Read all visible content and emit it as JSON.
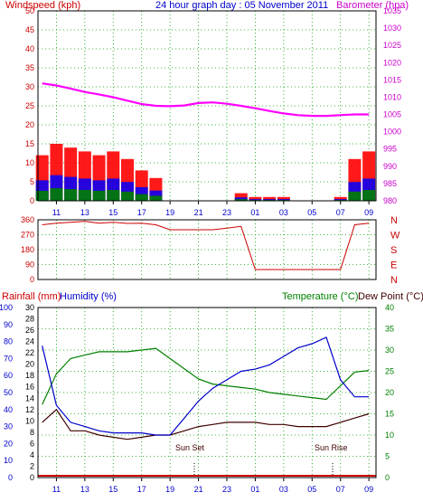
{
  "title": "24 hour graph day : 05 November 2011",
  "colors": {
    "windspeed": "#ff0000",
    "windgust": "#ff0000",
    "windavg": "#0000ff",
    "windmin": "#008000",
    "barometer": "#ff00ff",
    "direction": "#cc0000",
    "temperature": "#0000cc",
    "dewpoint": "#400000",
    "humidity": "#008000",
    "rainfall": "#cc0000",
    "label_red": "#cc0000",
    "label_blue": "#0000cc",
    "label_green": "#008000",
    "axis_teal": "#008080"
  },
  "panel1": {
    "left_label": "Windspeed (kph)",
    "right_label": "Barometer (hpa)",
    "left_ticks": [
      "50",
      "45",
      "40",
      "35",
      "30",
      "25",
      "20",
      "15",
      "10",
      "5",
      "0"
    ],
    "right_ticks": [
      "1035",
      "1030",
      "1025",
      "1020",
      "1015",
      "1010",
      "1005",
      "1000",
      "995",
      "990",
      "985",
      "980"
    ]
  },
  "panel2": {
    "left_ticks": [
      "360",
      "270",
      "180",
      "90",
      "0"
    ],
    "right_letters": [
      "N",
      "W",
      "S",
      "E",
      "N"
    ]
  },
  "panel3": {
    "label_rain": "Rainfall (mm)",
    "label_humidity": "Humidity (%)",
    "label_temperature": "Temperature (°C)",
    "label_dewpoint": "Dew Point (°C)",
    "humidity_ticks": [
      "100",
      "90",
      "80",
      "70",
      "60",
      "50",
      "40",
      "30",
      "20",
      "10",
      "0"
    ],
    "rain_ticks": [
      "30",
      "28",
      "26",
      "24",
      "22",
      "20",
      "18",
      "16",
      "14",
      "12",
      "10",
      "8",
      "6",
      "4",
      "2",
      "0"
    ],
    "temp_ticks": [
      "40",
      "35",
      "30",
      "25",
      "20",
      "15",
      "10",
      "5",
      "0"
    ],
    "sunset_label": "Sun Set",
    "sunrise_label": "Sun Rise"
  },
  "x_ticks": [
    "11",
    "13",
    "15",
    "17",
    "19",
    "21",
    "23",
    "01",
    "03",
    "05",
    "07",
    "09"
  ],
  "chart_data": [
    {
      "type": "area",
      "title": "24 hour graph day : 05 November 2011",
      "x_hours": [
        "10",
        "11",
        "12",
        "13",
        "14",
        "15",
        "16",
        "17",
        "18",
        "19",
        "20",
        "21",
        "22",
        "23",
        "00",
        "01",
        "02",
        "03",
        "04",
        "05",
        "06",
        "07",
        "08",
        "09"
      ],
      "ylabel": "Windspeed (kph)",
      "ylim": [
        0,
        50
      ],
      "y2label": "Barometer (hpa)",
      "y2lim": [
        980,
        1035
      ],
      "series": [
        {
          "name": "Windspeed (kph)",
          "values": [
            12,
            15,
            14,
            13,
            12,
            13,
            11,
            8,
            6,
            0,
            0,
            0,
            0,
            0,
            2,
            1,
            1,
            1,
            0,
            0,
            0,
            1,
            11,
            13
          ]
        },
        {
          "name": "Barometer (hpa)",
          "values": [
            1014,
            1013.4,
            1012.5,
            1011.5,
            1010.8,
            1010,
            1009,
            1008,
            1007.5,
            1007.4,
            1007.6,
            1008.3,
            1008.5,
            1008.1,
            1007.5,
            1006.8,
            1006,
            1005.3,
            1004.8,
            1004.6,
            1004.6,
            1004.8,
            1005,
            1005
          ]
        }
      ]
    },
    {
      "type": "line",
      "x_hours": [
        "10",
        "11",
        "12",
        "13",
        "14",
        "15",
        "16",
        "17",
        "18",
        "19",
        "20",
        "21",
        "22",
        "23",
        "00",
        "01",
        "02",
        "03",
        "04",
        "05",
        "06",
        "07",
        "08",
        "09"
      ],
      "ylabel": "Wind direction",
      "ylim": [
        0,
        360
      ],
      "series": [
        {
          "name": "Wind direction",
          "values": [
            330,
            340,
            345,
            350,
            340,
            345,
            338,
            340,
            330,
            300,
            300,
            300,
            300,
            310,
            320,
            60,
            60,
            60,
            60,
            60,
            60,
            60,
            330,
            340
          ]
        }
      ]
    },
    {
      "type": "line",
      "x_hours": [
        "10",
        "11",
        "12",
        "13",
        "14",
        "15",
        "16",
        "17",
        "18",
        "19",
        "20",
        "21",
        "22",
        "23",
        "00",
        "01",
        "02",
        "03",
        "04",
        "05",
        "06",
        "07",
        "08",
        "09"
      ],
      "ylabel": "Humidity (%)",
      "ylim": [
        0,
        100
      ],
      "y2label": "Temperature (°C)",
      "y2lim": [
        0,
        40
      ],
      "series": [
        {
          "name": "Temperature (°C)",
          "values": [
            31,
            17,
            13,
            12,
            11,
            10.5,
            10.5,
            10.5,
            10,
            10,
            14,
            18,
            21,
            23,
            25,
            25.5,
            26.5,
            28.5,
            30.5,
            31.5,
            33,
            23,
            19,
            19
          ]
        },
        {
          "name": "Humidity (%)",
          "values": [
            43,
            61,
            70,
            72,
            74,
            74,
            74,
            75,
            76,
            70,
            64,
            58,
            55,
            54,
            53,
            52,
            50,
            49,
            48,
            47,
            46,
            54,
            62,
            63
          ]
        },
        {
          "name": "Dew Point (°C)",
          "values": [
            13,
            16,
            11,
            11,
            10,
            9.5,
            9,
            9.5,
            10,
            10,
            11,
            12,
            12.5,
            13,
            13,
            13,
            12.5,
            12.5,
            12,
            12,
            12,
            13,
            14,
            15
          ]
        },
        {
          "name": "Rainfall (mm)",
          "values": [
            0,
            0,
            0,
            0,
            0,
            0,
            0,
            0,
            0,
            0,
            0,
            0,
            0,
            0,
            0,
            0,
            0,
            0,
            0,
            0,
            0,
            0,
            0,
            0
          ]
        }
      ]
    }
  ]
}
